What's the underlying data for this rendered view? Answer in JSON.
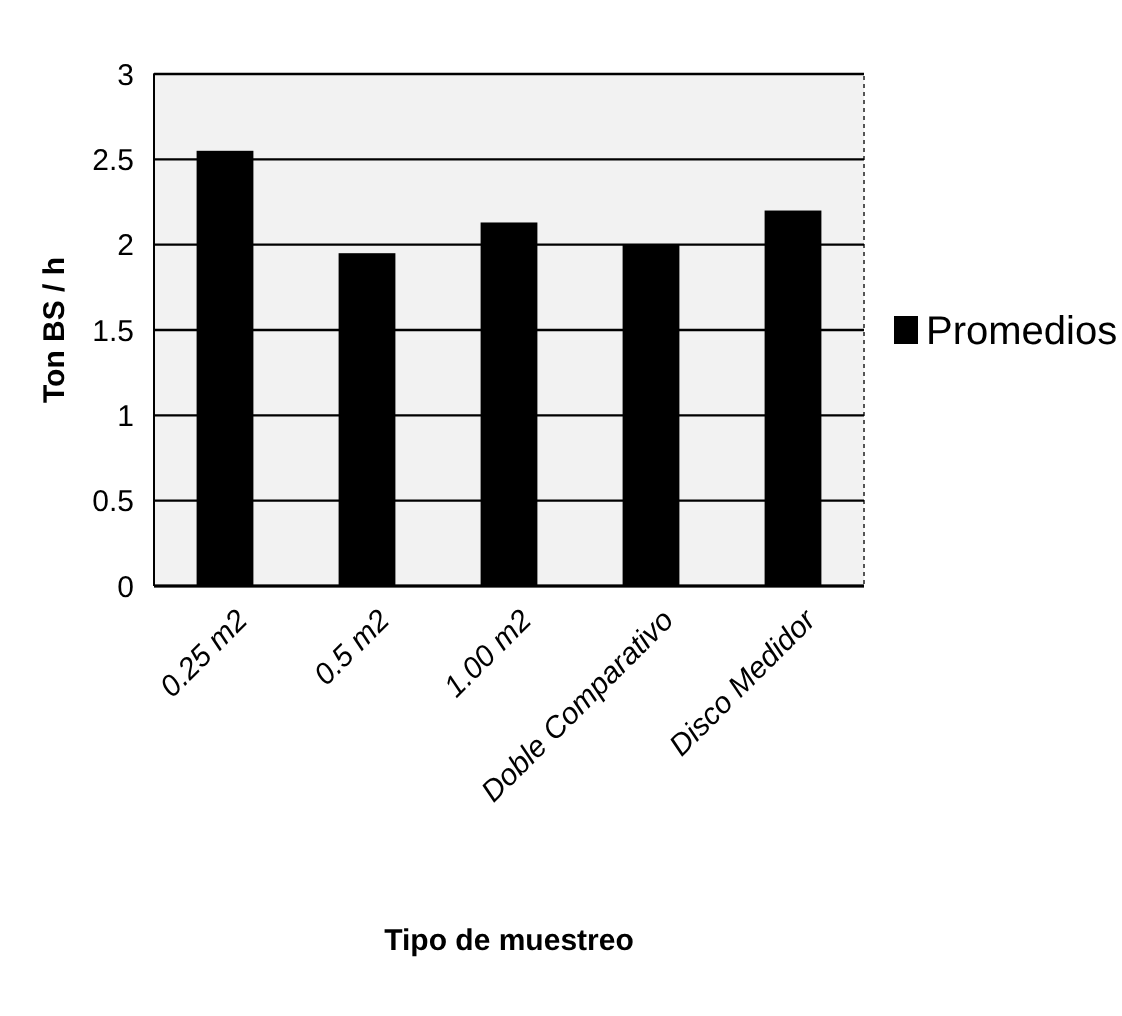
{
  "chart_data": {
    "type": "bar",
    "xlabel": "Tipo de muestreo",
    "ylabel": "Ton BS / h",
    "categories": [
      "0.25 m2",
      "0.5 m2",
      "1.00 m2",
      "Doble Comparativo",
      "Disco Medidor"
    ],
    "series": [
      {
        "name": "Promedios",
        "color": "#000000",
        "values": [
          2.55,
          1.95,
          2.13,
          2.0,
          2.2
        ]
      }
    ],
    "ylim": [
      0,
      3
    ],
    "yticks": [
      0,
      0.5,
      1,
      1.5,
      2,
      2.5,
      3
    ],
    "grid": "y",
    "legend": "right"
  }
}
